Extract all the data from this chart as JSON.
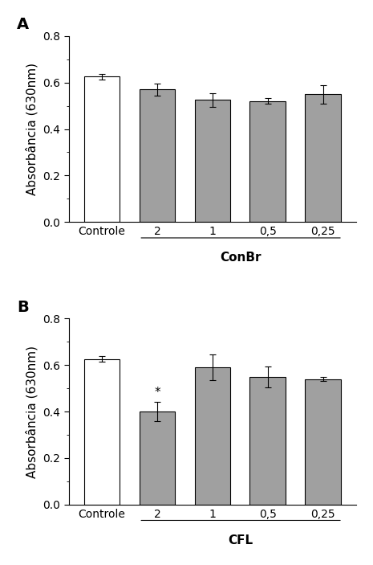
{
  "panel_A": {
    "label": "A",
    "categories": [
      "Controle",
      "2",
      "1",
      "0,5",
      "0,25"
    ],
    "values": [
      0.625,
      0.57,
      0.525,
      0.52,
      0.55
    ],
    "errors": [
      0.012,
      0.025,
      0.03,
      0.012,
      0.04
    ],
    "bar_colors": [
      "#ffffff",
      "#a0a0a0",
      "#a0a0a0",
      "#a0a0a0",
      "#a0a0a0"
    ],
    "bar_edgecolors": [
      "#000000",
      "#000000",
      "#000000",
      "#000000",
      "#000000"
    ],
    "xlabel_group": "ConBr",
    "ylabel": "Absorbância (630nm)",
    "ylim": [
      0.0,
      0.8
    ],
    "yticks": [
      0.0,
      0.2,
      0.4,
      0.6,
      0.8
    ],
    "asterisks": [
      "",
      "",
      "",
      "",
      ""
    ]
  },
  "panel_B": {
    "label": "B",
    "categories": [
      "Controle",
      "2",
      "1",
      "0,5",
      "0,25"
    ],
    "values": [
      0.625,
      0.4,
      0.59,
      0.55,
      0.54
    ],
    "errors": [
      0.012,
      0.04,
      0.055,
      0.045,
      0.01
    ],
    "bar_colors": [
      "#ffffff",
      "#a0a0a0",
      "#a0a0a0",
      "#a0a0a0",
      "#a0a0a0"
    ],
    "bar_edgecolors": [
      "#000000",
      "#000000",
      "#000000",
      "#000000",
      "#000000"
    ],
    "xlabel_group": "CFL",
    "ylabel": "Absorbância (630nm)",
    "ylim": [
      0.0,
      0.8
    ],
    "yticks": [
      0.0,
      0.2,
      0.4,
      0.6,
      0.8
    ],
    "asterisks": [
      "",
      "*",
      "",
      "",
      ""
    ]
  },
  "bar_width": 0.65,
  "figure_bg": "#ffffff",
  "font_family": "DejaVu Sans",
  "label_fontsize": 11,
  "tick_fontsize": 10,
  "group_label_fontsize": 11,
  "panel_label_fontsize": 14
}
